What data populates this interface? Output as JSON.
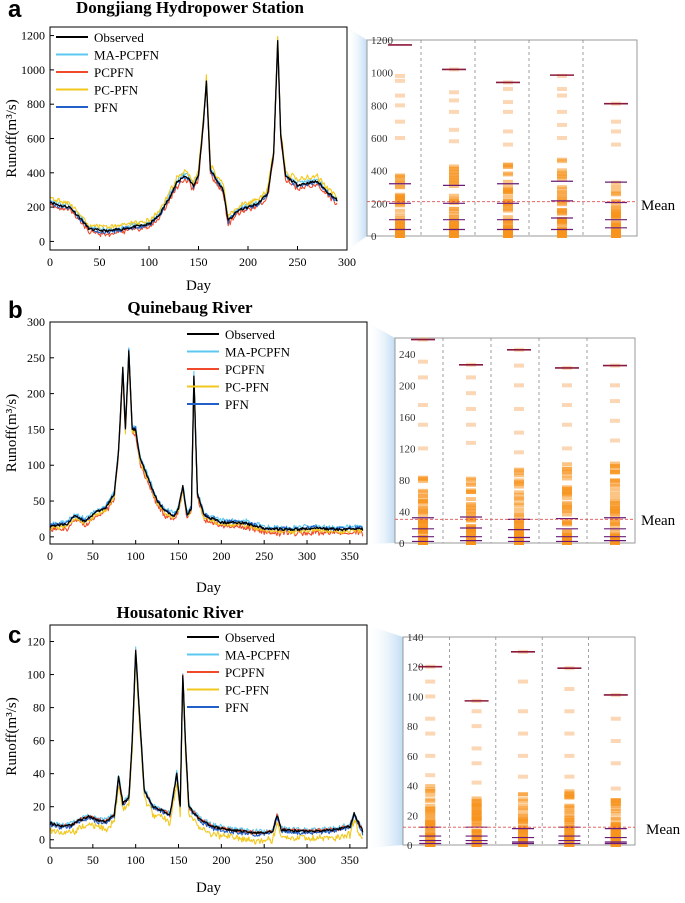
{
  "chart_data": [
    {
      "panel": "a",
      "type": "line",
      "title": "Dongjiang Hydropower Station",
      "xlabel": "Day",
      "ylabel": "Runoff(m³/s)",
      "xlim": [
        0,
        300
      ],
      "ylim": [
        -50,
        1250
      ],
      "xticks": [
        0,
        50,
        100,
        150,
        200,
        250,
        300
      ],
      "yticks": [
        0,
        200,
        400,
        600,
        800,
        1000,
        1200
      ],
      "days": 290,
      "series": [
        {
          "name": "Observed",
          "color": "#000000",
          "keypoints": [
            [
              0,
              230
            ],
            [
              10,
              210
            ],
            [
              20,
              200
            ],
            [
              30,
              140
            ],
            [
              40,
              70
            ],
            [
              60,
              60
            ],
            [
              80,
              80
            ],
            [
              100,
              100
            ],
            [
              110,
              150
            ],
            [
              120,
              250
            ],
            [
              128,
              340
            ],
            [
              135,
              380
            ],
            [
              140,
              370
            ],
            [
              145,
              320
            ],
            [
              150,
              390
            ],
            [
              155,
              700
            ],
            [
              158,
              930
            ],
            [
              162,
              420
            ],
            [
              168,
              360
            ],
            [
              175,
              300
            ],
            [
              180,
              120
            ],
            [
              190,
              180
            ],
            [
              200,
              200
            ],
            [
              210,
              220
            ],
            [
              220,
              280
            ],
            [
              226,
              520
            ],
            [
              230,
              1170
            ],
            [
              233,
              620
            ],
            [
              238,
              380
            ],
            [
              250,
              330
            ],
            [
              260,
              340
            ],
            [
              270,
              350
            ],
            [
              280,
              290
            ],
            [
              290,
              240
            ]
          ]
        },
        {
          "name": "MA-PCPFN",
          "color": "#5cc8f0",
          "offset": 10
        },
        {
          "name": "PCPFN",
          "color": "#f04a2a",
          "offset": -20
        },
        {
          "name": "PC-PFN",
          "color": "#f2c81c",
          "offset": 25
        },
        {
          "name": "PFN",
          "color": "#2060c8",
          "offset": -5
        }
      ],
      "legend_location": "top-left",
      "dist": {
        "yrange": [
          0,
          1200
        ],
        "yticks": [
          0,
          200,
          400,
          600,
          800,
          1000,
          1200
        ],
        "mean": 210,
        "mean_label": "Mean",
        "columns": [
          {
            "max": 1170,
            "p75": 320,
            "median": 200,
            "p25": 100,
            "min": 40,
            "dense_top": 380,
            "sparse": [
              600,
              700,
              800,
              860,
              950,
              980
            ]
          },
          {
            "max": 1020,
            "p75": 310,
            "median": 200,
            "p25": 100,
            "min": 40,
            "dense_top": 430,
            "sparse": [
              580,
              650,
              760,
              830,
              880,
              1020
            ]
          },
          {
            "max": 940,
            "p75": 320,
            "median": 200,
            "p25": 100,
            "min": 40,
            "dense_top": 460,
            "sparse": [
              560,
              640,
              760,
              820,
              900,
              940
            ]
          },
          {
            "max": 985,
            "p75": 335,
            "median": 215,
            "p25": 110,
            "min": 40,
            "dense_top": 510,
            "sparse": [
              600,
              680,
              760,
              860,
              900,
              980
            ]
          },
          {
            "max": 810,
            "p75": 330,
            "median": 205,
            "p25": 100,
            "min": 50,
            "dense_top": 350,
            "sparse": [
              560,
              640,
              700,
              810
            ]
          }
        ]
      }
    },
    {
      "panel": "b",
      "type": "line",
      "title": "Quinebaug River",
      "xlabel": "Day",
      "ylabel": "Runoff(m³/s)",
      "xlim": [
        0,
        370
      ],
      "ylim": [
        -10,
        300
      ],
      "xticks": [
        0,
        50,
        100,
        150,
        200,
        250,
        300,
        350
      ],
      "yticks": [
        0,
        50,
        100,
        150,
        200,
        250,
        300
      ],
      "days": 365,
      "series": [
        {
          "name": "Observed",
          "color": "#000000",
          "keypoints": [
            [
              0,
              15
            ],
            [
              20,
              18
            ],
            [
              30,
              30
            ],
            [
              40,
              22
            ],
            [
              55,
              35
            ],
            [
              65,
              40
            ],
            [
              75,
              60
            ],
            [
              80,
              120
            ],
            [
              85,
              235
            ],
            [
              88,
              150
            ],
            [
              92,
              258
            ],
            [
              96,
              150
            ],
            [
              100,
              150
            ],
            [
              105,
              110
            ],
            [
              115,
              80
            ],
            [
              125,
              50
            ],
            [
              135,
              35
            ],
            [
              145,
              30
            ],
            [
              150,
              40
            ],
            [
              155,
              70
            ],
            [
              160,
              30
            ],
            [
              165,
              40
            ],
            [
              168,
              225
            ],
            [
              172,
              60
            ],
            [
              180,
              30
            ],
            [
              200,
              20
            ],
            [
              225,
              20
            ],
            [
              250,
              12
            ],
            [
              280,
              10
            ],
            [
              310,
              12
            ],
            [
              340,
              10
            ],
            [
              360,
              12
            ],
            [
              365,
              10
            ]
          ]
        },
        {
          "name": "MA-PCPFN",
          "color": "#5cc8f0",
          "offset": 3
        },
        {
          "name": "PCPFN",
          "color": "#f04a2a",
          "offset": -6
        },
        {
          "name": "PC-PFN",
          "color": "#f2c81c",
          "offset": -3
        },
        {
          "name": "PFN",
          "color": "#2060c8",
          "offset": 1
        }
      ],
      "legend_location": "top-right",
      "dist": {
        "yrange": [
          0,
          260
        ],
        "yticks": [
          0,
          40,
          80,
          120,
          160,
          200,
          240
        ],
        "mean": 30,
        "mean_label": "Mean",
        "columns": [
          {
            "max": 258,
            "p75": 32,
            "median": 18,
            "p25": 8,
            "min": 2,
            "dense_top": 90,
            "sparse": [
              120,
              150,
              175,
              210,
              230,
              258
            ]
          },
          {
            "max": 226,
            "p75": 33,
            "median": 19,
            "p25": 8,
            "min": 3,
            "dense_top": 100,
            "sparse": [
              127,
              150,
              170,
              190,
              210,
              226
            ]
          },
          {
            "max": 245,
            "p75": 30,
            "median": 17,
            "p25": 7,
            "min": 2,
            "dense_top": 95,
            "sparse": [
              115,
              140,
              170,
              200,
              225,
              245
            ]
          },
          {
            "max": 222,
            "p75": 31,
            "median": 18,
            "p25": 8,
            "min": 2,
            "dense_top": 100,
            "sparse": [
              120,
              150,
              175,
              200,
              222
            ]
          },
          {
            "max": 225,
            "p75": 32,
            "median": 18,
            "p25": 8,
            "min": 3,
            "dense_top": 105,
            "sparse": [
              130,
              155,
              180,
              200,
              225
            ]
          }
        ]
      }
    },
    {
      "panel": "c",
      "type": "line",
      "title": "Housatonic River",
      "xlabel": "Day",
      "ylabel": "Runoff(m³/s)",
      "xlim": [
        0,
        370
      ],
      "ylim": [
        -5,
        130
      ],
      "xticks": [
        0,
        50,
        100,
        150,
        200,
        250,
        300,
        350
      ],
      "yticks": [
        0,
        20,
        40,
        60,
        80,
        100,
        120
      ],
      "days": 365,
      "series": [
        {
          "name": "Observed",
          "color": "#000000",
          "keypoints": [
            [
              0,
              10
            ],
            [
              15,
              8
            ],
            [
              25,
              9
            ],
            [
              35,
              12
            ],
            [
              45,
              14
            ],
            [
              55,
              12
            ],
            [
              65,
              11
            ],
            [
              75,
              15
            ],
            [
              80,
              38
            ],
            [
              85,
              22
            ],
            [
              92,
              25
            ],
            [
              96,
              60
            ],
            [
              100,
              115
            ],
            [
              104,
              80
            ],
            [
              110,
              30
            ],
            [
              120,
              20
            ],
            [
              130,
              18
            ],
            [
              140,
              15
            ],
            [
              148,
              40
            ],
            [
              152,
              20
            ],
            [
              155,
              100
            ],
            [
              158,
              60
            ],
            [
              162,
              20
            ],
            [
              175,
              12
            ],
            [
              190,
              8
            ],
            [
              210,
              6
            ],
            [
              240,
              4
            ],
            [
              260,
              5
            ],
            [
              265,
              15
            ],
            [
              270,
              6
            ],
            [
              300,
              5
            ],
            [
              330,
              6
            ],
            [
              350,
              8
            ],
            [
              355,
              16
            ],
            [
              365,
              5
            ]
          ]
        },
        {
          "name": "MA-PCPFN",
          "color": "#5cc8f0",
          "offset": 1
        },
        {
          "name": "PCPFN",
          "color": "#f04a2a",
          "offset": 0
        },
        {
          "name": "PC-PFN",
          "color": "#f2c81c",
          "offset": -5
        },
        {
          "name": "PFN",
          "color": "#2060c8",
          "offset": -1
        }
      ],
      "legend_location": "top-right",
      "dist": {
        "yrange": [
          0,
          140
        ],
        "yticks": [
          0,
          20,
          40,
          60,
          80,
          100,
          120,
          140
        ],
        "mean": 12,
        "mean_label": "Mean",
        "columns": [
          {
            "max": 120,
            "p75": 12,
            "median": 6,
            "p25": 3,
            "min": 1,
            "dense_top": 40,
            "sparse": [
              47,
              60,
              75,
              85,
              100,
              110,
              120
            ]
          },
          {
            "max": 97,
            "p75": 12,
            "median": 6,
            "p25": 3,
            "min": 1,
            "dense_top": 32,
            "sparse": [
              42,
              55,
              65,
              80,
              90,
              97
            ]
          },
          {
            "max": 130,
            "p75": 11,
            "median": 5,
            "p25": 2,
            "min": 1,
            "dense_top": 35,
            "sparse": [
              46,
              60,
              75,
              90,
              110,
              130
            ]
          },
          {
            "max": 119,
            "p75": 12,
            "median": 6,
            "p25": 3,
            "min": 1,
            "dense_top": 38,
            "sparse": [
              46,
              60,
              75,
              90,
              105,
              119
            ]
          },
          {
            "max": 101,
            "p75": 11,
            "median": 5,
            "p25": 2,
            "min": 1,
            "dense_top": 33,
            "sparse": [
              38,
              55,
              70,
              85,
              101
            ]
          }
        ]
      }
    }
  ]
}
